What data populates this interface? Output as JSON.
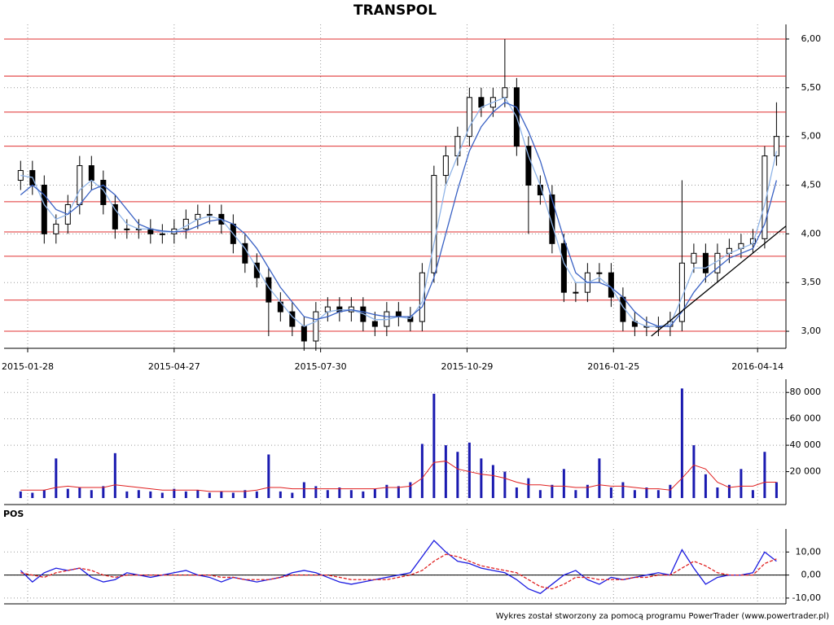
{
  "chart_data": [
    {
      "type": "candlestick",
      "title": "TRANSPOL",
      "x": [
        7,
        12,
        17,
        22,
        27,
        32,
        37,
        42,
        47,
        52,
        57,
        62,
        67,
        72,
        77,
        82,
        87,
        92,
        97,
        102,
        107,
        112,
        117,
        122,
        127,
        132,
        137,
        142,
        147,
        152,
        157,
        162,
        167,
        172,
        177,
        182,
        187,
        192,
        197,
        202,
        207,
        212,
        217,
        222,
        227,
        232,
        237,
        242,
        247,
        252,
        257,
        262,
        267,
        272,
        277,
        282,
        287,
        292,
        297,
        302,
        307,
        312,
        317,
        322,
        327
      ],
      "open": [
        4.55,
        4.65,
        4.5,
        4.0,
        4.1,
        4.3,
        4.7,
        4.55,
        4.3,
        4.05,
        4.05,
        4.05,
        4.0,
        4.0,
        4.05,
        4.15,
        4.2,
        4.2,
        4.1,
        3.9,
        3.7,
        3.55,
        3.3,
        3.2,
        3.05,
        2.9,
        3.2,
        3.25,
        3.2,
        3.25,
        3.1,
        3.05,
        3.2,
        3.15,
        3.1,
        3.6,
        4.6,
        4.8,
        5.0,
        5.4,
        5.3,
        5.4,
        5.5,
        4.9,
        4.5,
        4.4,
        3.9,
        3.4,
        3.4,
        3.6,
        3.6,
        3.35,
        3.1,
        3.05,
        3.05,
        3.05,
        3.1,
        3.7,
        3.8,
        3.6,
        3.8,
        3.85,
        3.9,
        3.95,
        4.8
      ],
      "high": [
        4.75,
        4.75,
        4.6,
        4.2,
        4.4,
        4.8,
        4.8,
        4.65,
        4.4,
        4.15,
        4.15,
        4.15,
        4.1,
        4.15,
        4.25,
        4.3,
        4.3,
        4.3,
        4.2,
        4.0,
        3.8,
        3.65,
        3.4,
        3.3,
        3.15,
        3.3,
        3.35,
        3.35,
        3.35,
        3.35,
        3.2,
        3.3,
        3.3,
        3.25,
        3.7,
        4.7,
        4.9,
        5.1,
        5.5,
        5.5,
        5.5,
        6.0,
        5.6,
        5.0,
        4.6,
        4.5,
        4.0,
        3.5,
        3.7,
        3.7,
        3.7,
        3.45,
        3.2,
        3.15,
        3.15,
        3.2,
        4.55,
        3.9,
        3.9,
        3.9,
        3.95,
        4.0,
        4.05,
        4.9,
        5.35
      ],
      "low": [
        4.45,
        4.4,
        3.9,
        3.9,
        4.0,
        4.2,
        4.45,
        4.2,
        3.95,
        3.95,
        3.95,
        3.9,
        3.9,
        3.9,
        3.95,
        4.05,
        4.1,
        4.0,
        3.8,
        3.6,
        3.45,
        2.95,
        3.1,
        2.95,
        2.8,
        2.8,
        3.1,
        3.1,
        3.1,
        3.0,
        2.95,
        2.95,
        3.05,
        3.0,
        3.0,
        3.5,
        4.5,
        4.7,
        4.9,
        5.2,
        5.2,
        5.3,
        4.8,
        4.0,
        4.3,
        3.8,
        3.3,
        3.3,
        3.3,
        3.5,
        3.25,
        3.0,
        2.95,
        2.95,
        2.95,
        2.95,
        3.0,
        3.6,
        3.5,
        3.5,
        3.7,
        3.75,
        3.8,
        3.85,
        4.7
      ],
      "close": [
        4.65,
        4.5,
        4.0,
        4.1,
        4.3,
        4.7,
        4.55,
        4.3,
        4.05,
        4.05,
        4.05,
        4.0,
        4.0,
        4.05,
        4.15,
        4.2,
        4.2,
        4.1,
        3.9,
        3.7,
        3.55,
        3.3,
        3.2,
        3.05,
        2.9,
        3.2,
        3.25,
        3.2,
        3.25,
        3.1,
        3.05,
        3.2,
        3.15,
        3.1,
        3.6,
        4.6,
        4.8,
        5.0,
        5.4,
        5.3,
        5.4,
        5.5,
        4.9,
        4.5,
        4.4,
        3.9,
        3.4,
        3.4,
        3.6,
        3.6,
        3.35,
        3.1,
        3.05,
        3.05,
        3.05,
        3.1,
        3.7,
        3.8,
        3.6,
        3.8,
        3.85,
        3.9,
        3.95,
        4.8,
        5.0
      ],
      "lines": [
        {
          "color": "#8fb4e8",
          "values": [
            4.6,
            4.58,
            4.3,
            4.15,
            4.2,
            4.45,
            4.55,
            4.45,
            4.25,
            4.1,
            4.05,
            4.05,
            4.02,
            4.02,
            4.08,
            4.15,
            4.18,
            4.15,
            4.0,
            3.85,
            3.65,
            3.45,
            3.3,
            3.15,
            3.05,
            3.1,
            3.2,
            3.22,
            3.22,
            3.18,
            3.12,
            3.12,
            3.15,
            3.13,
            3.3,
            3.9,
            4.5,
            4.8,
            5.1,
            5.3,
            5.35,
            5.4,
            5.2,
            4.8,
            4.5,
            4.1,
            3.7,
            3.5,
            3.5,
            3.55,
            3.45,
            3.25,
            3.1,
            3.05,
            3.05,
            3.07,
            3.35,
            3.65,
            3.65,
            3.72,
            3.8,
            3.85,
            3.9,
            4.3,
            4.85
          ]
        },
        {
          "color": "#3a62c4",
          "values": [
            4.4,
            4.5,
            4.4,
            4.25,
            4.2,
            4.3,
            4.45,
            4.5,
            4.4,
            4.25,
            4.1,
            4.05,
            4.03,
            4.02,
            4.03,
            4.08,
            4.13,
            4.15,
            4.1,
            4.0,
            3.85,
            3.65,
            3.45,
            3.3,
            3.15,
            3.12,
            3.15,
            3.2,
            3.22,
            3.2,
            3.17,
            3.15,
            3.15,
            3.15,
            3.25,
            3.55,
            4.0,
            4.45,
            4.85,
            5.1,
            5.25,
            5.35,
            5.3,
            5.05,
            4.75,
            4.35,
            3.95,
            3.6,
            3.5,
            3.5,
            3.45,
            3.35,
            3.2,
            3.1,
            3.05,
            3.05,
            3.2,
            3.4,
            3.55,
            3.65,
            3.75,
            3.8,
            3.85,
            4.1,
            4.55
          ]
        }
      ],
      "levels": [
        6.0,
        5.62,
        5.25,
        4.9,
        4.33,
        4.02,
        3.77,
        3.32,
        3.0
      ],
      "level_color": "#e03030",
      "trendline": {
        "x": [
          274,
          331
        ],
        "y": [
          2.95,
          4.08
        ],
        "color": "#000000"
      },
      "xlim": [
        0,
        331
      ],
      "ylim": [
        2.825,
        6.15
      ],
      "xticks": [
        {
          "value": 10,
          "label": "2015-01-28"
        },
        {
          "value": 72,
          "label": "2015-04-27"
        },
        {
          "value": 134,
          "label": "2015-07-30"
        },
        {
          "value": 196,
          "label": "2015-10-29"
        },
        {
          "value": 258,
          "label": "2016-01-25"
        },
        {
          "value": 319,
          "label": "2016-04-14"
        }
      ],
      "yticks": [
        {
          "value": 3,
          "label": "3,00"
        },
        {
          "value": 3.5,
          "label": "3,50"
        },
        {
          "value": 4,
          "label": "4,00"
        },
        {
          "value": 4.5,
          "label": "4,50"
        },
        {
          "value": 5,
          "label": "5,00"
        },
        {
          "value": 5.5,
          "label": "5,50"
        },
        {
          "value": 6,
          "label": "6,00"
        }
      ]
    },
    {
      "type": "bar",
      "color": "#1a1ab0",
      "x": [
        7,
        12,
        17,
        22,
        27,
        32,
        37,
        42,
        47,
        52,
        57,
        62,
        67,
        72,
        77,
        82,
        87,
        92,
        97,
        102,
        107,
        112,
        117,
        122,
        127,
        132,
        137,
        142,
        147,
        152,
        157,
        162,
        167,
        172,
        177,
        182,
        187,
        192,
        197,
        202,
        207,
        212,
        217,
        222,
        227,
        232,
        237,
        242,
        247,
        252,
        257,
        262,
        267,
        272,
        277,
        282,
        287,
        292,
        297,
        302,
        307,
        312,
        317,
        322,
        327
      ],
      "values": [
        5000,
        4000,
        6000,
        30000,
        7000,
        8000,
        6000,
        9000,
        34000,
        5000,
        6000,
        5000,
        4000,
        7000,
        5000,
        6000,
        4000,
        5000,
        4000,
        6000,
        5000,
        33000,
        5000,
        4000,
        12000,
        9000,
        6000,
        8000,
        6000,
        5000,
        7000,
        10000,
        9000,
        12000,
        41000,
        79000,
        40000,
        35000,
        42000,
        30000,
        25000,
        20000,
        8000,
        15000,
        6000,
        10000,
        22000,
        6000,
        10000,
        30000,
        8000,
        12000,
        6000,
        8000,
        6000,
        10000,
        83000,
        40000,
        18000,
        8000,
        10000,
        22000,
        6000,
        35000,
        12000
      ],
      "line": {
        "color": "#e02020",
        "values": [
          6000,
          6000,
          6000,
          8000,
          9000,
          8000,
          8000,
          8000,
          10000,
          9000,
          8000,
          7000,
          6000,
          6000,
          6000,
          6000,
          5000,
          5000,
          5000,
          5000,
          6000,
          8000,
          8000,
          7000,
          7000,
          7000,
          7000,
          7000,
          7000,
          7000,
          7000,
          8000,
          8000,
          9000,
          15000,
          27000,
          28000,
          22000,
          20000,
          18000,
          17000,
          15000,
          12000,
          10000,
          10000,
          9000,
          9000,
          8000,
          8000,
          10000,
          9000,
          9000,
          8000,
          7000,
          7000,
          6000,
          15000,
          25000,
          22000,
          12000,
          8000,
          9000,
          9000,
          12000,
          12000
        ]
      },
      "xlim": [
        0,
        331
      ],
      "ylim": [
        0,
        90000
      ],
      "yticks": [
        {
          "value": 20000,
          "label": "20 000"
        },
        {
          "value": 40000,
          "label": "40 000"
        },
        {
          "value": 60000,
          "label": "60 000"
        },
        {
          "value": 80000,
          "label": "80 000"
        }
      ]
    },
    {
      "type": "line",
      "title": "POS",
      "x": [
        7,
        12,
        17,
        22,
        27,
        32,
        37,
        42,
        47,
        52,
        57,
        62,
        67,
        72,
        77,
        82,
        87,
        92,
        97,
        102,
        107,
        112,
        117,
        122,
        127,
        132,
        137,
        142,
        147,
        152,
        157,
        162,
        167,
        172,
        177,
        182,
        187,
        192,
        197,
        202,
        207,
        212,
        217,
        222,
        227,
        232,
        237,
        242,
        247,
        252,
        257,
        262,
        267,
        272,
        277,
        282,
        287,
        292,
        297,
        302,
        307,
        312,
        317,
        322,
        327
      ],
      "series": [
        {
          "color": "#1a1ae0",
          "dash": false,
          "values": [
            2,
            -3,
            1,
            3,
            2,
            3,
            -1,
            -3,
            -2,
            1,
            0,
            -1,
            0,
            1,
            2,
            0,
            -1,
            -3,
            -1,
            -2,
            -3,
            -2,
            -1,
            1,
            2,
            1,
            -1,
            -3,
            -4,
            -3,
            -2,
            -1,
            0,
            1,
            8,
            15,
            10,
            6,
            5,
            3,
            2,
            1,
            -2,
            -6,
            -8,
            -4,
            0,
            2,
            -2,
            -4,
            -1,
            -2,
            -1,
            0,
            1,
            0,
            11,
            3,
            -4,
            -1,
            0,
            0,
            1,
            10,
            6
          ]
        },
        {
          "color": "#e02020",
          "dash": true,
          "values": [
            1,
            0,
            -1,
            1,
            2,
            3,
            2,
            0,
            -1,
            0,
            0,
            0,
            0,
            0,
            0,
            0,
            0,
            -1,
            -1,
            -2,
            -2,
            -2,
            -1,
            0,
            0,
            0,
            0,
            -1,
            -2,
            -2,
            -2,
            -2,
            -1,
            0,
            2,
            6,
            9,
            8,
            6,
            4,
            3,
            2,
            1,
            -2,
            -5,
            -6,
            -4,
            -1,
            -1,
            -2,
            -2,
            -2,
            -1,
            -1,
            0,
            0,
            3,
            6,
            4,
            1,
            0,
            0,
            0,
            5,
            7
          ]
        }
      ],
      "xlim": [
        0,
        331
      ],
      "ylim": [
        -12.5,
        20
      ],
      "yticks": [
        {
          "value": -10,
          "label": "-10,00"
        },
        {
          "value": 0,
          "label": "0,00"
        },
        {
          "value": 10,
          "label": "10,00"
        }
      ]
    }
  ],
  "footer": "Wykres został stworzony za pomocą programu PowerTrader (www.powertrader.pl)"
}
